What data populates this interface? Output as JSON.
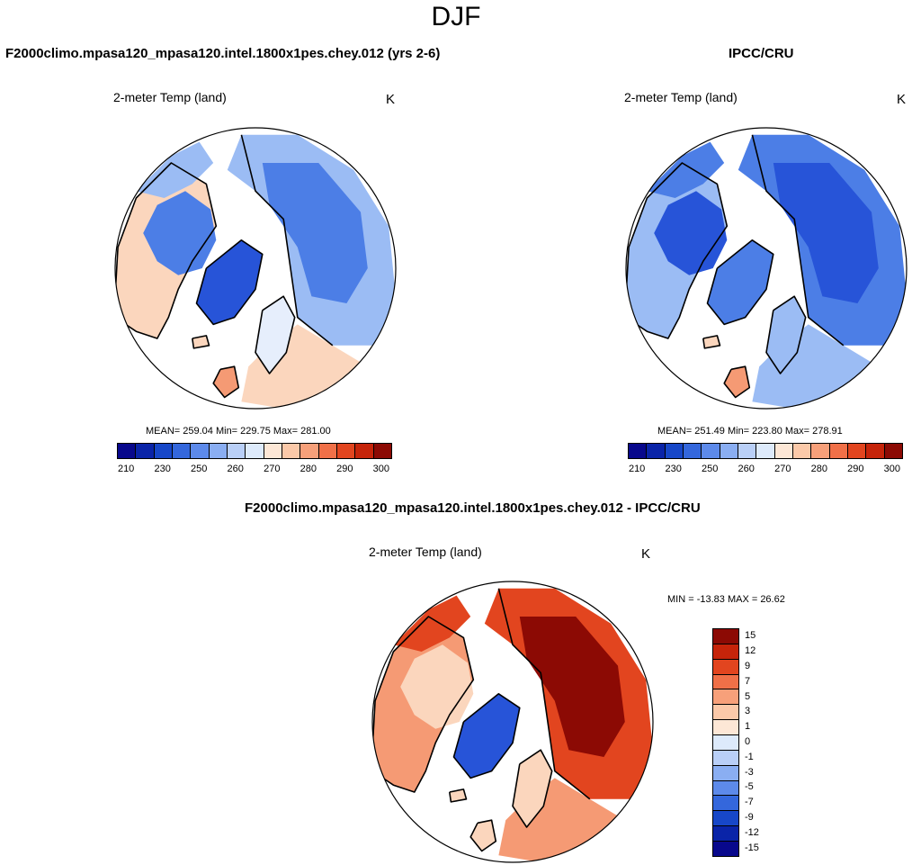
{
  "season": "DJF",
  "panels": [
    {
      "title": "F2000climo.mpasa120_mpasa120.intel.1800x1pes.chey.012 (yrs 2-6)",
      "label": "2-meter Temp (land)",
      "unit": "K",
      "stats": "MEAN= 259.04  Min= 229.75  Max= 281.00"
    },
    {
      "title": "IPCC/CRU",
      "label": "2-meter Temp (land)",
      "unit": "K",
      "stats": "MEAN= 251.49  Min= 223.80  Max= 278.91"
    },
    {
      "title": "F2000climo.mpasa120_mpasa120.intel.1800x1pes.chey.012 - IPCC/CRU",
      "label": "2-meter Temp (land)",
      "unit": "K",
      "stats": "MIN = -13.83 MAX =  26.62"
    }
  ],
  "abs_colorbar": {
    "colors": [
      "#08088c",
      "#0a24a8",
      "#1747c8",
      "#3467dc",
      "#5d8aea",
      "#8aaef2",
      "#b9cff7",
      "#ddeafb",
      "#fde7d6",
      "#fbc9a9",
      "#f7a07a",
      "#f07048",
      "#e2451f",
      "#c6240a",
      "#8c0a04"
    ],
    "tick_labels": [
      "210",
      "230",
      "250",
      "260",
      "270",
      "280",
      "290",
      "300"
    ]
  },
  "diff_colorbar": {
    "colors": [
      "#8c0a04",
      "#c6240a",
      "#e2451f",
      "#f07048",
      "#f7a07a",
      "#fbc9a9",
      "#fde7d6",
      "#ddeafb",
      "#b9cff7",
      "#8aaef2",
      "#5d8aea",
      "#3467dc",
      "#1747c8",
      "#0a24a8",
      "#08088c"
    ],
    "tick_labels": [
      "15",
      "12",
      "9",
      "7",
      "5",
      "3",
      "1",
      "0",
      "-1",
      "-3",
      "-5",
      "-7",
      "-9",
      "-12",
      "-15"
    ]
  },
  "map_colors": {
    "cold_deep": "#2754d8",
    "cold": "#4c7ee6",
    "cool": "#9bbcf4",
    "neutral": "#e6eefc",
    "warm_light": "#fbd6bd",
    "warm": "#f59a74",
    "hot": "#e2451f",
    "very_hot": "#b8190a",
    "extreme": "#8c0a04"
  }
}
